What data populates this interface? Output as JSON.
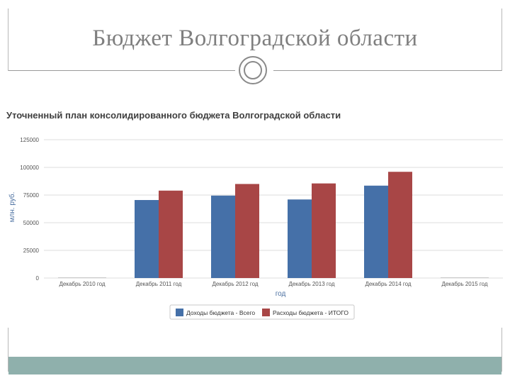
{
  "slide": {
    "title": "Бюджет Волгоградской области"
  },
  "colors": {
    "income": "#4570a8",
    "expense": "#a84646",
    "footer": "#8fb0ac"
  },
  "chart_data": {
    "type": "bar",
    "title": "Уточненный план консолидированного бюджета Волгоградской области",
    "xlabel": "год",
    "ylabel": "млн. руб.",
    "ylim": [
      0,
      125000
    ],
    "yticks": [
      "0",
      "25000",
      "50000",
      "75000",
      "100000",
      "125000"
    ],
    "categories": [
      "Декабрь 2010 год",
      "Декабрь 2011 год",
      "Декабрь 2012 год",
      "Декабрь 2013 год",
      "Декабрь 2014 год",
      "Декабрь 2015 год"
    ],
    "series": [
      {
        "name": "Доходы бюджета - Всего",
        "values": [
          0,
          70500,
          74500,
          71000,
          83500,
          0
        ]
      },
      {
        "name": "Расходы бюджета - ИТОГО",
        "values": [
          0,
          79000,
          85000,
          85500,
          96000,
          0
        ]
      }
    ],
    "grid": true,
    "legend": "bottom-center"
  }
}
